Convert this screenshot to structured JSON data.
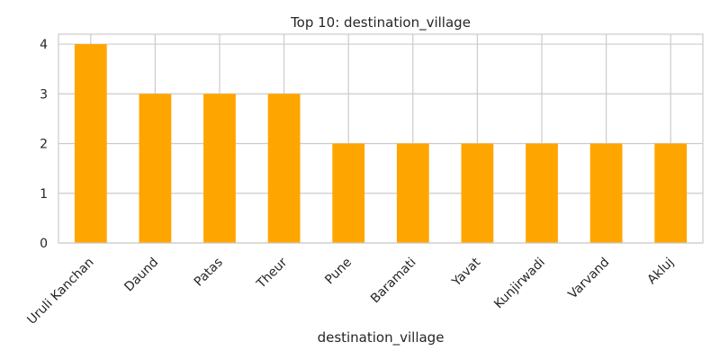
{
  "chart_data": {
    "type": "bar",
    "title": "Top 10: destination_village",
    "xlabel": "destination_village",
    "ylabel": "",
    "categories": [
      "Uruli Kanchan",
      "Daund",
      "Patas",
      "Theur",
      "Pune",
      "Baramati",
      "Yavat",
      "Kunjirwadi",
      "Varvand",
      "Akluj"
    ],
    "values": [
      4,
      3,
      3,
      3,
      2,
      2,
      2,
      2,
      2,
      2
    ],
    "yticks": [
      0,
      1,
      2,
      3,
      4
    ],
    "ylim": [
      0,
      4.2
    ],
    "grid": true,
    "bar_color": "#FFA500",
    "grid_color": "#cccccc",
    "background": "#ffffff"
  }
}
